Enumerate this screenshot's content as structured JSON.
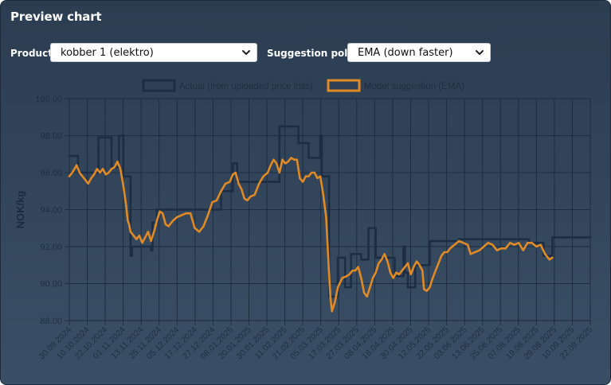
{
  "panel": {
    "title": "Preview chart"
  },
  "controls": {
    "product_label": "Product",
    "product_value": "kobber 1 (elektro)",
    "policy_label": "Suggestion policy",
    "policy_value": "EMA (down faster)"
  },
  "chart_data": {
    "type": "line",
    "ylabel": "NOK/kg",
    "ylim": [
      88,
      100
    ],
    "yticks": [
      "88.00",
      "90.00",
      "92.00",
      "94.00",
      "96.00",
      "98.00",
      "100.00"
    ],
    "xlim": [
      "2024-09-30",
      "2025-09-22"
    ],
    "xticks": [
      "30.09.2024",
      "10.10.2024",
      "22.10.2024",
      "01.11.2024",
      "13.11.2024",
      "25.11.2024",
      "05.12.2024",
      "17.12.2024",
      "27.12.2024",
      "08.01.2025",
      "20.01.2025",
      "30.01.2025",
      "11.02.2025",
      "21.02.2025",
      "05.03.2025",
      "17.03.2025",
      "27.03.2025",
      "08.04.2025",
      "18.04.2025",
      "30.04.2025",
      "12.05.2025",
      "22.05.2025",
      "03.06.2025",
      "13.06.2025",
      "25.06.2025",
      "07.08.2025",
      "19.08.2025",
      "29.08.2025",
      "10.09.2025",
      "22.09.2025"
    ],
    "grid": true,
    "legend_position": "top",
    "series": [
      {
        "name": "Actual (from uploaded price lists)",
        "color": "#1d2e44",
        "step": true,
        "points": [
          [
            "2024-09-30",
            96.9
          ],
          [
            "2024-10-06",
            96.0
          ],
          [
            "2024-10-18",
            96.0
          ],
          [
            "2024-10-20",
            97.9
          ],
          [
            "2024-10-28",
            97.9
          ],
          [
            "2024-10-29",
            96.3
          ],
          [
            "2024-11-01",
            96.3
          ],
          [
            "2024-11-03",
            98.0
          ],
          [
            "2024-11-05",
            98.0
          ],
          [
            "2024-11-06",
            95.8
          ],
          [
            "2024-11-09",
            95.8
          ],
          [
            "2024-11-11",
            91.5
          ],
          [
            "2024-11-12",
            92.0
          ],
          [
            "2024-11-24",
            92.0
          ],
          [
            "2024-11-25",
            91.8
          ],
          [
            "2024-11-26",
            93.3
          ],
          [
            "2024-11-29",
            94.0
          ],
          [
            "2025-01-08",
            94.0
          ],
          [
            "2025-01-12",
            95.0
          ],
          [
            "2025-01-19",
            95.0
          ],
          [
            "2025-01-20",
            96.5
          ],
          [
            "2025-01-22",
            96.5
          ],
          [
            "2025-01-23",
            95.5
          ],
          [
            "2025-02-20",
            95.5
          ],
          [
            "2025-02-21",
            98.5
          ],
          [
            "2025-03-05",
            98.5
          ],
          [
            "2025-03-06",
            97.6
          ],
          [
            "2025-03-12",
            97.6
          ],
          [
            "2025-03-13",
            96.8
          ],
          [
            "2025-03-20",
            96.8
          ],
          [
            "2025-03-21",
            98.0
          ],
          [
            "2025-03-22",
            95.8
          ],
          [
            "2025-03-26",
            95.8
          ],
          [
            "2025-03-27",
            89.3
          ],
          [
            "2025-04-01",
            89.3
          ],
          [
            "2025-04-02",
            91.4
          ],
          [
            "2025-04-06",
            91.4
          ],
          [
            "2025-04-07",
            89.8
          ],
          [
            "2025-04-10",
            89.8
          ],
          [
            "2025-04-11",
            91.6
          ],
          [
            "2025-04-17",
            91.6
          ],
          [
            "2025-04-18",
            91.3
          ],
          [
            "2025-04-22",
            91.3
          ],
          [
            "2025-04-23",
            93.0
          ],
          [
            "2025-04-27",
            93.0
          ],
          [
            "2025-04-28",
            91.4
          ],
          [
            "2025-05-10",
            91.4
          ],
          [
            "2025-05-11",
            90.4
          ],
          [
            "2025-05-16",
            90.4
          ],
          [
            "2025-05-17",
            92.0
          ],
          [
            "2025-05-18",
            90.6
          ],
          [
            "2025-05-20",
            89.8
          ],
          [
            "2025-05-24",
            89.8
          ],
          [
            "2025-05-25",
            91.0
          ],
          [
            "2025-06-01",
            91.0
          ],
          [
            "2025-06-04",
            92.3
          ],
          [
            "2025-06-23",
            92.3
          ],
          [
            "2025-06-24",
            92.4
          ],
          [
            "2025-08-10",
            92.4
          ],
          [
            "2025-08-11",
            92.2
          ],
          [
            "2025-08-20",
            92.2
          ],
          [
            "2025-08-21",
            91.5
          ],
          [
            "2025-08-26",
            91.5
          ],
          [
            "2025-08-27",
            92.5
          ]
        ]
      },
      {
        "name": "Model suggestion (EMA)",
        "color": "#e08a26",
        "step": false,
        "points": [
          [
            "2024-09-30",
            95.8
          ],
          [
            "2024-10-02",
            96.0
          ],
          [
            "2024-10-05",
            96.4
          ],
          [
            "2024-10-07",
            96.0
          ],
          [
            "2024-10-09",
            95.8
          ],
          [
            "2024-10-11",
            95.6
          ],
          [
            "2024-10-13",
            95.4
          ],
          [
            "2024-10-15",
            95.7
          ],
          [
            "2024-10-17",
            95.9
          ],
          [
            "2024-10-19",
            96.2
          ],
          [
            "2024-10-21",
            96.0
          ],
          [
            "2024-10-23",
            96.2
          ],
          [
            "2024-10-25",
            95.9
          ],
          [
            "2024-10-27",
            96.0
          ],
          [
            "2024-10-29",
            96.2
          ],
          [
            "2024-10-31",
            96.3
          ],
          [
            "2024-11-02",
            96.6
          ],
          [
            "2024-11-04",
            96.2
          ],
          [
            "2024-11-06",
            95.3
          ],
          [
            "2024-11-08",
            94.2
          ],
          [
            "2024-11-09",
            93.4
          ],
          [
            "2024-11-10",
            93.2
          ],
          [
            "2024-11-11",
            92.8
          ],
          [
            "2024-11-13",
            92.6
          ],
          [
            "2024-11-15",
            92.4
          ],
          [
            "2024-11-17",
            92.6
          ],
          [
            "2024-11-19",
            92.2
          ],
          [
            "2024-11-21",
            92.5
          ],
          [
            "2024-11-23",
            92.8
          ],
          [
            "2024-11-25",
            92.3
          ],
          [
            "2024-11-27",
            92.8
          ],
          [
            "2024-11-29",
            93.4
          ],
          [
            "2024-12-01",
            93.9
          ],
          [
            "2024-12-03",
            93.8
          ],
          [
            "2024-12-05",
            93.2
          ],
          [
            "2024-12-07",
            93.1
          ],
          [
            "2024-12-10",
            93.4
          ],
          [
            "2024-12-13",
            93.6
          ],
          [
            "2024-12-16",
            93.7
          ],
          [
            "2024-12-19",
            93.8
          ],
          [
            "2024-12-22",
            93.8
          ],
          [
            "2024-12-25",
            93.0
          ],
          [
            "2024-12-28",
            92.8
          ],
          [
            "2024-12-31",
            93.1
          ],
          [
            "2025-01-03",
            93.7
          ],
          [
            "2025-01-06",
            94.4
          ],
          [
            "2025-01-09",
            94.5
          ],
          [
            "2025-01-12",
            95.0
          ],
          [
            "2025-01-15",
            95.4
          ],
          [
            "2025-01-18",
            95.5
          ],
          [
            "2025-01-20",
            95.9
          ],
          [
            "2025-01-22",
            96.0
          ],
          [
            "2025-01-24",
            95.4
          ],
          [
            "2025-01-26",
            95.1
          ],
          [
            "2025-01-28",
            94.6
          ],
          [
            "2025-01-30",
            94.5
          ],
          [
            "2025-02-01",
            94.7
          ],
          [
            "2025-02-04",
            94.8
          ],
          [
            "2025-02-07",
            95.4
          ],
          [
            "2025-02-10",
            95.8
          ],
          [
            "2025-02-13",
            96.0
          ],
          [
            "2025-02-15",
            96.4
          ],
          [
            "2025-02-17",
            96.7
          ],
          [
            "2025-02-19",
            96.5
          ],
          [
            "2025-02-21",
            96.0
          ],
          [
            "2025-02-23",
            96.7
          ],
          [
            "2025-02-25",
            96.5
          ],
          [
            "2025-02-27",
            96.6
          ],
          [
            "2025-03-01",
            96.8
          ],
          [
            "2025-03-03",
            96.7
          ],
          [
            "2025-03-05",
            96.7
          ],
          [
            "2025-03-07",
            95.7
          ],
          [
            "2025-03-09",
            95.5
          ],
          [
            "2025-03-11",
            95.8
          ],
          [
            "2025-03-13",
            95.8
          ],
          [
            "2025-03-15",
            96.0
          ],
          [
            "2025-03-17",
            96.0
          ],
          [
            "2025-03-19",
            95.7
          ],
          [
            "2025-03-21",
            95.8
          ],
          [
            "2025-03-23",
            94.8
          ],
          [
            "2025-03-25",
            93.6
          ],
          [
            "2025-03-27",
            90.5
          ],
          [
            "2025-03-28",
            89.2
          ],
          [
            "2025-03-29",
            88.5
          ],
          [
            "2025-03-31",
            89.0
          ],
          [
            "2025-04-02",
            89.8
          ],
          [
            "2025-04-05",
            90.3
          ],
          [
            "2025-04-08",
            90.4
          ],
          [
            "2025-04-10",
            90.5
          ],
          [
            "2025-04-12",
            90.7
          ],
          [
            "2025-04-14",
            90.7
          ],
          [
            "2025-04-16",
            90.9
          ],
          [
            "2025-04-18",
            90.3
          ],
          [
            "2025-04-20",
            89.5
          ],
          [
            "2025-04-22",
            89.3
          ],
          [
            "2025-04-24",
            89.8
          ],
          [
            "2025-04-26",
            90.3
          ],
          [
            "2025-04-28",
            90.6
          ],
          [
            "2025-04-30",
            91.1
          ],
          [
            "2025-05-02",
            91.3
          ],
          [
            "2025-05-04",
            91.6
          ],
          [
            "2025-05-06",
            91.2
          ],
          [
            "2025-05-08",
            90.6
          ],
          [
            "2025-05-10",
            90.3
          ],
          [
            "2025-05-12",
            90.6
          ],
          [
            "2025-05-14",
            90.5
          ],
          [
            "2025-05-16",
            90.7
          ],
          [
            "2025-05-18",
            90.9
          ],
          [
            "2025-05-20",
            91.1
          ],
          [
            "2025-05-22",
            90.5
          ],
          [
            "2025-05-24",
            90.9
          ],
          [
            "2025-05-26",
            91.2
          ],
          [
            "2025-05-28",
            91.0
          ],
          [
            "2025-05-30",
            90.7
          ],
          [
            "2025-05-31",
            89.7
          ],
          [
            "2025-06-02",
            89.6
          ],
          [
            "2025-06-04",
            89.8
          ],
          [
            "2025-06-06",
            90.3
          ],
          [
            "2025-06-08",
            90.7
          ],
          [
            "2025-06-10",
            91.1
          ],
          [
            "2025-06-12",
            91.5
          ],
          [
            "2025-06-14",
            91.7
          ],
          [
            "2025-06-16",
            91.7
          ],
          [
            "2025-06-18",
            91.9
          ],
          [
            "2025-06-21",
            92.1
          ],
          [
            "2025-06-24",
            92.3
          ],
          [
            "2025-06-27",
            92.2
          ],
          [
            "2025-06-30",
            92.1
          ],
          [
            "2025-07-02",
            91.6
          ],
          [
            "2025-07-05",
            91.7
          ],
          [
            "2025-07-08",
            91.8
          ],
          [
            "2025-07-11",
            92.0
          ],
          [
            "2025-07-14",
            92.2
          ],
          [
            "2025-07-17",
            92.1
          ],
          [
            "2025-07-20",
            91.8
          ],
          [
            "2025-07-23",
            91.9
          ],
          [
            "2025-07-26",
            91.9
          ],
          [
            "2025-07-29",
            92.2
          ],
          [
            "2025-08-01",
            92.1
          ],
          [
            "2025-08-04",
            92.2
          ],
          [
            "2025-08-07",
            91.8
          ],
          [
            "2025-08-10",
            92.2
          ],
          [
            "2025-08-13",
            92.2
          ],
          [
            "2025-08-16",
            92.0
          ],
          [
            "2025-08-19",
            92.1
          ],
          [
            "2025-08-22",
            91.6
          ],
          [
            "2025-08-25",
            91.3
          ],
          [
            "2025-08-27",
            91.4
          ]
        ]
      }
    ]
  }
}
